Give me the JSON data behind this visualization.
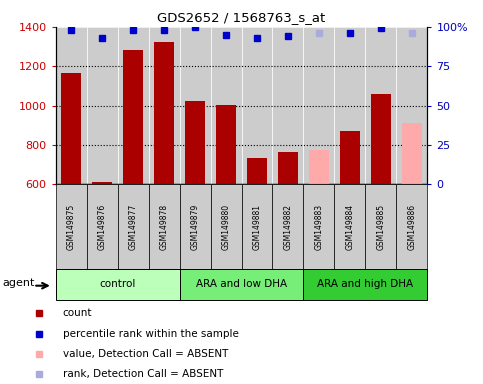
{
  "title": "GDS2652 / 1568763_s_at",
  "samples": [
    "GSM149875",
    "GSM149876",
    "GSM149877",
    "GSM149878",
    "GSM149879",
    "GSM149880",
    "GSM149881",
    "GSM149882",
    "GSM149883",
    "GSM149884",
    "GSM149885",
    "GSM149886"
  ],
  "bar_values": [
    1165,
    610,
    1285,
    1325,
    1025,
    1005,
    735,
    765,
    775,
    870,
    1060,
    910
  ],
  "bar_colors": [
    "#aa0000",
    "#aa0000",
    "#aa0000",
    "#aa0000",
    "#aa0000",
    "#aa0000",
    "#aa0000",
    "#aa0000",
    "#ffaaaa",
    "#aa0000",
    "#aa0000",
    "#ffaaaa"
  ],
  "dot_values": [
    98,
    93,
    98,
    98,
    100,
    95,
    93,
    94,
    96,
    96,
    99,
    96
  ],
  "dot_colors": [
    "#0000cc",
    "#0000cc",
    "#0000cc",
    "#0000cc",
    "#0000cc",
    "#0000cc",
    "#0000cc",
    "#0000cc",
    "#aaaadd",
    "#0000cc",
    "#0000cc",
    "#aaaadd"
  ],
  "ylim_left": [
    600,
    1400
  ],
  "ylim_right": [
    0,
    100
  ],
  "yticks_left": [
    600,
    800,
    1000,
    1200,
    1400
  ],
  "yticks_right": [
    0,
    25,
    50,
    75,
    100
  ],
  "groups": [
    {
      "label": "control",
      "start": 0,
      "end": 3,
      "color": "#bbffbb"
    },
    {
      "label": "ARA and low DHA",
      "start": 4,
      "end": 7,
      "color": "#77ee77"
    },
    {
      "label": "ARA and high DHA",
      "start": 8,
      "end": 11,
      "color": "#33cc33"
    }
  ],
  "agent_label": "agent",
  "bar_width": 0.65,
  "ylabel_left_color": "#cc0000",
  "ylabel_right_color": "#0000bb",
  "plot_bg": "#dddddd",
  "col_bg": "#cccccc"
}
